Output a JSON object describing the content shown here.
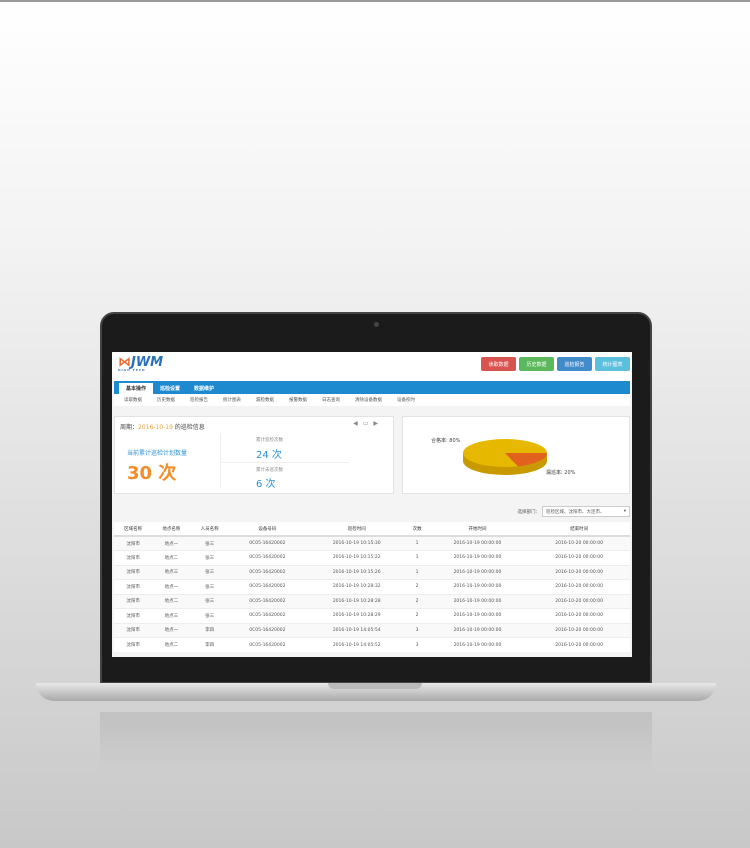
{
  "header": {
    "logo": "JWM",
    "logo_sub": "HIGH TECH",
    "buttons": [
      {
        "label": "读取数据",
        "color": "#d9534f"
      },
      {
        "label": "历史数据",
        "color": "#5cb85c"
      },
      {
        "label": "巡检报告",
        "color": "#428bca"
      },
      {
        "label": "统计图表",
        "color": "#5bc0de"
      }
    ]
  },
  "nav": {
    "tabs": [
      "基本操作",
      "巡检设置",
      "数据维护"
    ],
    "sub": [
      "读取数据",
      "历史数据",
      "巡检报告",
      "统计图表",
      "漏检数据",
      "报警数据",
      "日志查询",
      "清除设备数据",
      "设备校时"
    ]
  },
  "summary": {
    "period_prefix": "周期：",
    "date": "2016-10-19",
    "period_suffix": " 的巡检信息",
    "plan_label": "当前累计巡检计划数量",
    "plan_value": "30 次",
    "done_label": "累计巡检次数",
    "done_value": "24 次",
    "miss_label": "累计未巡次数",
    "miss_value": "6 次"
  },
  "chart_data": {
    "type": "pie",
    "slices": [
      {
        "label": "合格率: 80%",
        "value": 80,
        "color": "#e6b800"
      },
      {
        "label": "漏巡率: 20%",
        "value": 20,
        "color": "#e0621c"
      }
    ]
  },
  "filter": {
    "label": "选择部门：",
    "value": "巡检区域、沈阳市、大连市、"
  },
  "table": {
    "headers": [
      "区域名称",
      "地点名称",
      "人员名称",
      "设备号码",
      "巡检时间",
      "次数",
      "开始时间",
      "结束时间"
    ],
    "rows": [
      [
        "沈阳市",
        "地点一",
        "张三",
        "0C05-16420002",
        "2016-10-19 10:15:30",
        "1",
        "2016-10-19 00:00:00",
        "2016-10-20 00:00:00"
      ],
      [
        "沈阳市",
        "地点二",
        "张三",
        "0C05-16420002",
        "2016-10-19 10:15:22",
        "1",
        "2016-10-19 00:00:00",
        "2016-10-20 00:00:00"
      ],
      [
        "沈阳市",
        "地点三",
        "张三",
        "0C05-16420002",
        "2016-10-19 10:15:26",
        "1",
        "2016-10-19 00:00:00",
        "2016-10-20 00:00:00"
      ],
      [
        "沈阳市",
        "地点一",
        "张三",
        "0C05-16420002",
        "2016-10-19 10:28:32",
        "2",
        "2016-10-19 00:00:00",
        "2016-10-20 00:00:00"
      ],
      [
        "沈阳市",
        "地点二",
        "张三",
        "0C05-16420002",
        "2016-10-19 10:28:28",
        "2",
        "2016-10-19 00:00:00",
        "2016-10-20 00:00:00"
      ],
      [
        "沈阳市",
        "地点三",
        "张三",
        "0C05-16420002",
        "2016-10-19 10:28:29",
        "2",
        "2016-10-19 00:00:00",
        "2016-10-20 00:00:00"
      ],
      [
        "沈阳市",
        "地点一",
        "李四",
        "0C05-16420002",
        "2016-10-19 14:05:54",
        "3",
        "2016-10-19 00:00:00",
        "2016-10-20 00:00:00"
      ],
      [
        "沈阳市",
        "地点二",
        "李四",
        "0C05-16420002",
        "2016-10-19 14:05:52",
        "3",
        "2016-10-19 00:00:00",
        "2016-10-20 00:00:00"
      ]
    ]
  }
}
